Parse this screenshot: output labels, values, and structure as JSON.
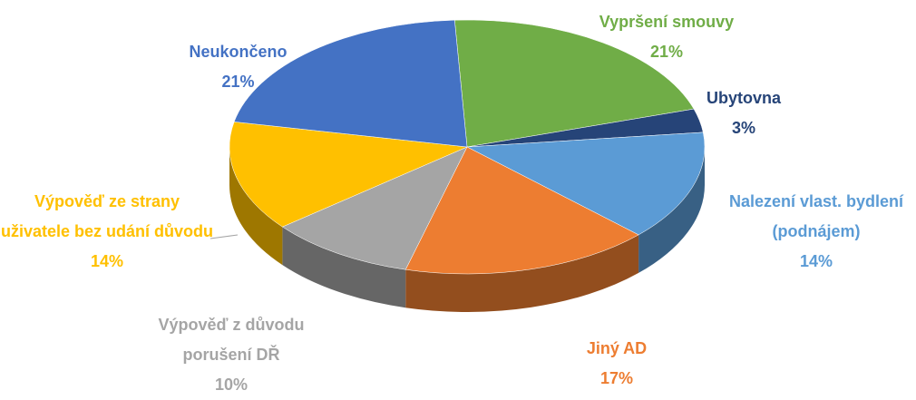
{
  "chart_data": {
    "type": "pie",
    "categories": [
      "Vypršení smouvy",
      "Ubytovna",
      "Nalezení vlast. bydlení (podnájem)",
      "Jiný AD",
      "Výpověď z důvodu porušení DŘ",
      "Výpověď ze strany uživatele bez udání důvodu",
      "Neukončeno"
    ],
    "values": [
      21,
      3,
      14,
      17,
      10,
      14,
      21
    ],
    "value_labels": [
      "21%",
      "3%",
      "14%",
      "17%",
      "10%",
      "14%",
      "21%"
    ],
    "colors": [
      "#70ad47",
      "#264478",
      "#5b9bd5",
      "#ed7d31",
      "#a5a5a5",
      "#ffc000",
      "#4472c4"
    ]
  }
}
